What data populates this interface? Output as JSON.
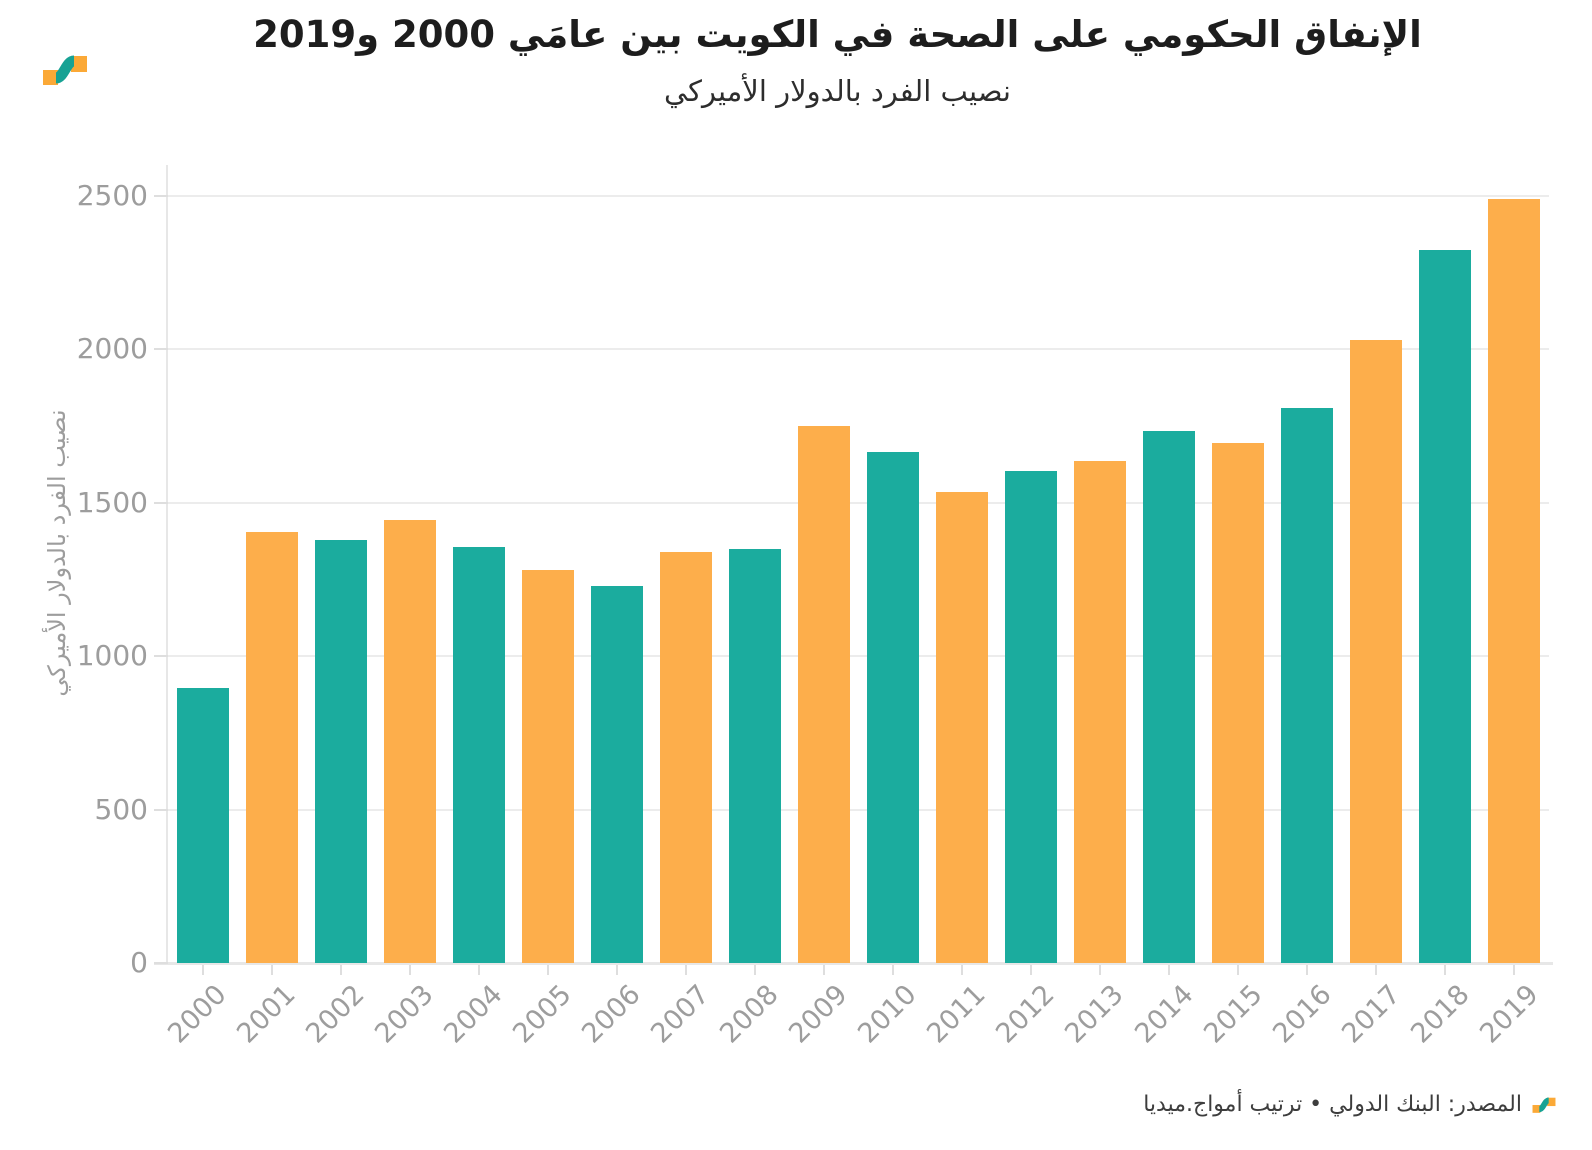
{
  "header": {
    "title": "الإنفاق الحكومي على الصحة في الكويت بين عامَي 2000 و2019",
    "subtitle": "نصيب الفرد بالدولار الأميركي"
  },
  "chart_data": {
    "type": "bar",
    "title": "الإنفاق الحكومي على الصحة في الكويت بين عامَي 2000 و2019",
    "subtitle": "نصيب الفرد بالدولار الأميركي",
    "xlabel": "",
    "ylabel": "نصيب الفرد بالدولار الأميركي",
    "categories": [
      "2000",
      "2001",
      "2002",
      "2003",
      "2004",
      "2005",
      "2006",
      "2007",
      "2008",
      "2009",
      "2010",
      "2011",
      "2012",
      "2013",
      "2014",
      "2015",
      "2016",
      "2017",
      "2018",
      "2019"
    ],
    "values": [
      895,
      1405,
      1380,
      1445,
      1355,
      1280,
      1230,
      1340,
      1350,
      1750,
      1665,
      1535,
      1605,
      1635,
      1735,
      1695,
      1810,
      2030,
      2325,
      2490
    ],
    "ylim": [
      0,
      2500
    ],
    "yticks": [
      0,
      500,
      1000,
      1500,
      2000,
      2500
    ],
    "grid": "horizontal",
    "legend": "none",
    "bar_color_even_years": "#1BAC9E",
    "bar_color_odd_years": "#FDAE4B"
  },
  "footer": {
    "source_text": "المصدر: البنك الدولي • ترتيب أمواج.ميديا"
  },
  "colors": {
    "teal": "#1BAC9E",
    "orange": "#FDAE4B",
    "axis_text": "#9d9d9d",
    "gridline": "#ececec",
    "title_text": "#1d1d1d",
    "footer_text": "#3d3d3d"
  }
}
